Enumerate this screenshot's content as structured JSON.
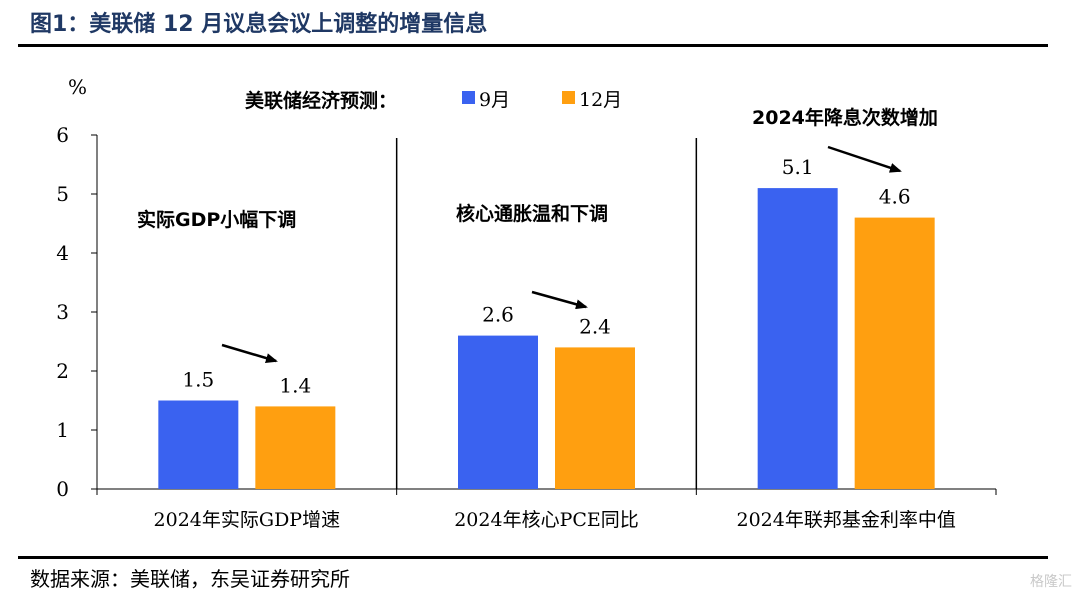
{
  "figure": {
    "title": "图1：美联储 12 月议息会议上调整的增量信息",
    "source": "数据来源：美联储，东吴证券研究所",
    "watermark": "格隆汇"
  },
  "chart_data": {
    "type": "bar",
    "ylabel": "%",
    "ylim": [
      0,
      6
    ],
    "yticks": [
      0,
      1,
      2,
      3,
      4,
      5,
      6
    ],
    "legend_title": "美联储经济预测：",
    "legend_placement": "top",
    "categories": [
      "2024年实际GDP增速",
      "2024年核心PCE同比",
      "2024年联邦基金利率中值"
    ],
    "series": [
      {
        "name": "9月",
        "color": "#3a62f0",
        "values": [
          1.5,
          2.6,
          5.1
        ]
      },
      {
        "name": "12月",
        "color": "#ff9f10",
        "values": [
          1.4,
          2.4,
          4.6
        ]
      }
    ],
    "annotations": [
      "实际GDP小幅下调",
      "核心通胀温和下调",
      "2024年降息次数增加"
    ],
    "grid": false
  }
}
